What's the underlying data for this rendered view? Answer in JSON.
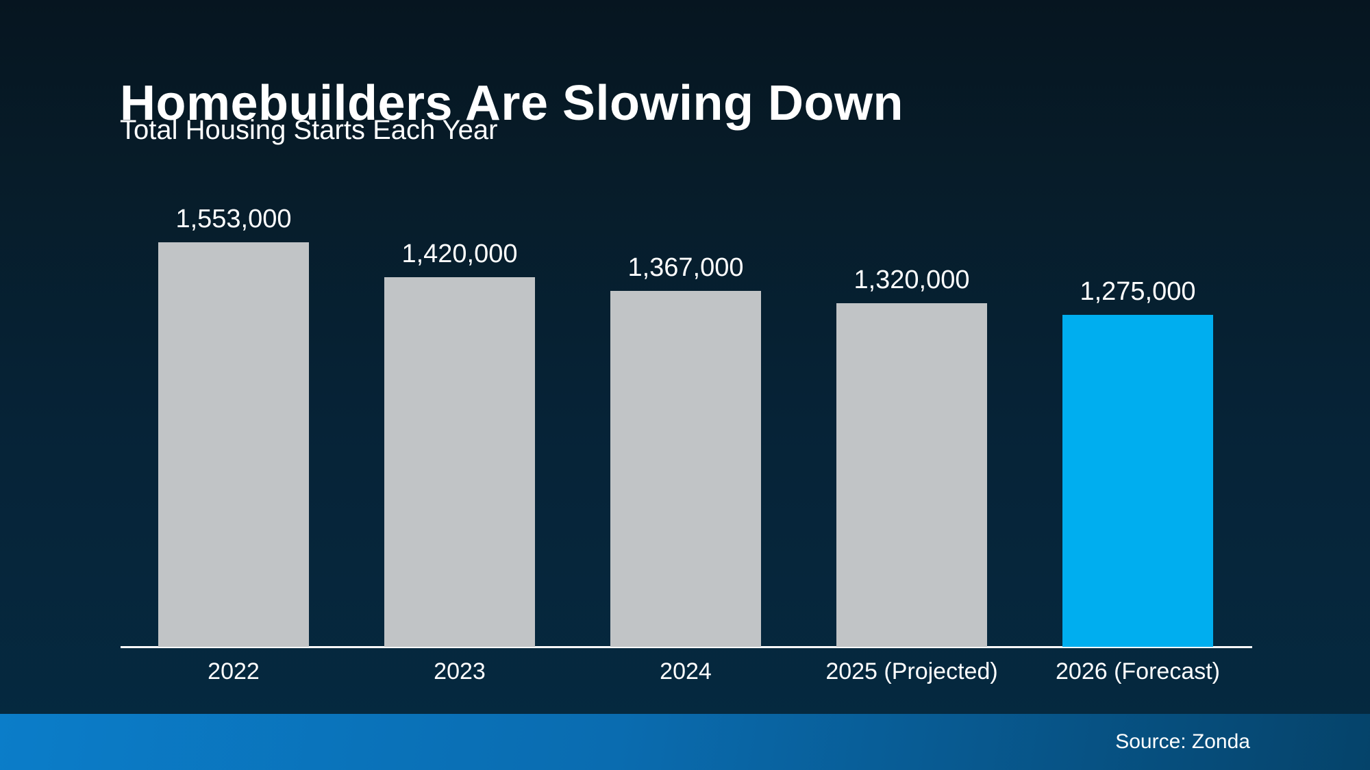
{
  "header": {
    "title": "Homebuilders Are Slowing Down",
    "subtitle": "Total Housing Starts Each Year"
  },
  "footer": {
    "source_label": "Source: Zonda"
  },
  "colors": {
    "background_top": "#061520",
    "background_bottom": "#052a41",
    "bar_default": "#c1c4c6",
    "bar_highlight": "#00aeef",
    "axis_line": "#ffffff",
    "text": "#ffffff",
    "footer_gradient_left": "#0b7dc9",
    "footer_gradient_right": "#05436a"
  },
  "chart_data": {
    "type": "bar",
    "title": "Homebuilders Are Slowing Down",
    "subtitle": "Total Housing Starts Each Year",
    "categories": [
      "2022",
      "2023",
      "2024",
      "2025 (Projected)",
      "2026 (Forecast)"
    ],
    "values": [
      1553000,
      1420000,
      1367000,
      1320000,
      1275000
    ],
    "value_labels": [
      "1,553,000",
      "1,420,000",
      "1,367,000",
      "1,320,000",
      "1,275,000"
    ],
    "highlight_index": 4,
    "xlabel": "",
    "ylabel": "",
    "ylim": [
      0,
      1600000
    ],
    "grid": false,
    "legend": false,
    "source": "Source: Zonda"
  }
}
